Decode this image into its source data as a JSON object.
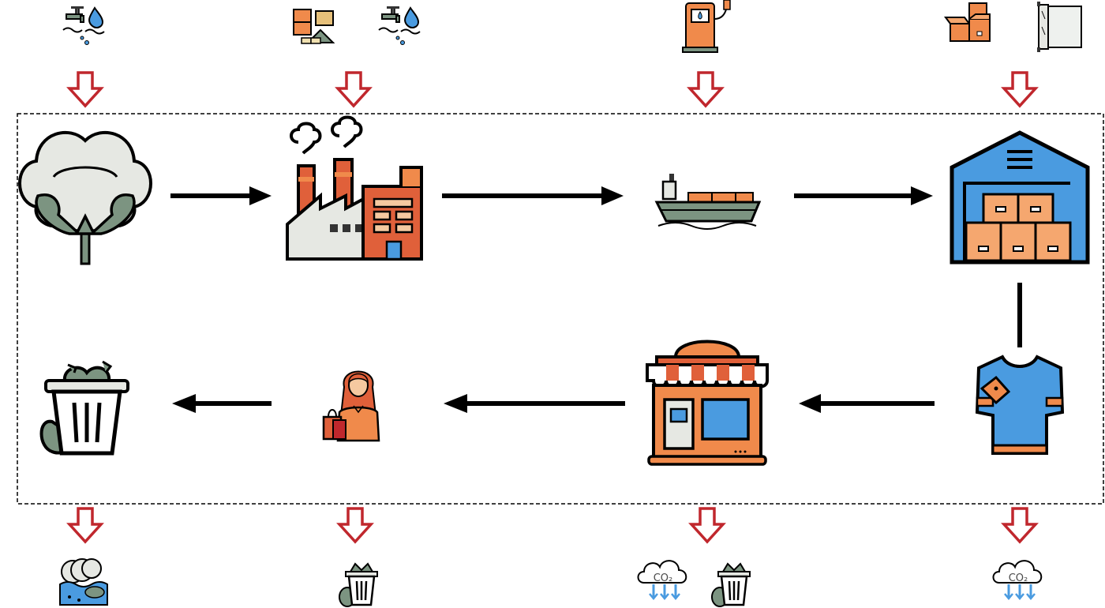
{
  "diagram": {
    "stages": [
      {
        "id": "cotton",
        "icon": "cotton-plant-icon"
      },
      {
        "id": "factory",
        "icon": "factory-icon"
      },
      {
        "id": "ship",
        "icon": "cargo-ship-icon"
      },
      {
        "id": "warehouse",
        "icon": "warehouse-icon"
      },
      {
        "id": "tshirt",
        "icon": "tshirt-icon"
      },
      {
        "id": "store",
        "icon": "store-icon"
      },
      {
        "id": "consumer",
        "icon": "shopping-woman-icon"
      },
      {
        "id": "trash",
        "icon": "trash-can-icon"
      }
    ],
    "inputs": [
      {
        "stage": "cotton",
        "icons": [
          "water-tap-icon"
        ]
      },
      {
        "stage": "factory",
        "icons": [
          "raw-materials-icon",
          "water-tap-icon"
        ]
      },
      {
        "stage": "ship",
        "icons": [
          "fuel-pump-icon"
        ]
      },
      {
        "stage": "warehouse",
        "icons": [
          "cardboard-boxes-icon",
          "plastic-wrap-roll-icon"
        ]
      }
    ],
    "outputs": [
      {
        "stage": "cotton",
        "icons": [
          "water-pollution-icon"
        ]
      },
      {
        "stage": "consumer",
        "icons": [
          "trash-can-icon"
        ]
      },
      {
        "stage": "store",
        "icons": [
          "co2-cloud-icon",
          "trash-can-icon"
        ]
      },
      {
        "stage": "tshirt",
        "icons": [
          "co2-cloud-icon"
        ]
      }
    ],
    "co2_label": "CO₂",
    "colors": {
      "arrow": "#000000",
      "io_arrow": "#c0272d",
      "orange": "#f08a4b",
      "red_brick": "#e0603a",
      "blue": "#4a9be0",
      "cotton_green": "#7c9481",
      "grey": "#e6e8e3",
      "outline": "#000000"
    }
  }
}
